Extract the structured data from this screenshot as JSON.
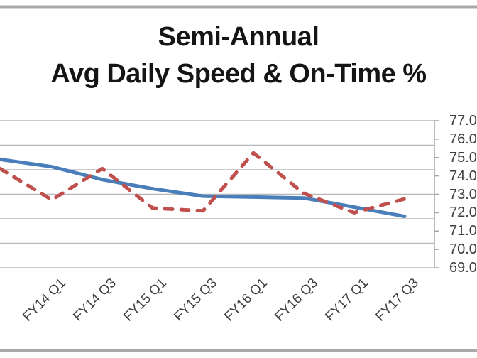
{
  "title": {
    "line1": "Semi-Annual",
    "line2": "Avg Daily Speed & On-Time %"
  },
  "chart_data": {
    "type": "line",
    "title": "Semi-Annual Avg Daily Speed & On-Time %",
    "categories": [
      "FY14 Q1",
      "FY14 Q3",
      "FY15 Q1",
      "FY15 Q3",
      "FY16 Q1",
      "FY16 Q3",
      "FY17 Q1",
      "FY17 Q3"
    ],
    "series": [
      {
        "name": "Avg Daily Speed",
        "line_style": "solid",
        "color": "#4a7ebb",
        "axis": "primary (cropped off left edge of image)",
        "value_scale": "right-axis equivalent (left axis not visible)",
        "values": [
          74.5,
          73.8,
          73.3,
          72.9,
          72.85,
          72.8,
          72.3,
          71.8
        ],
        "left_edge_value": 74.9
      },
      {
        "name": "On-Time %",
        "line_style": "dashed",
        "color": "#c0504d",
        "axis": "secondary (right)",
        "values": [
          72.7,
          74.4,
          72.25,
          72.1,
          75.25,
          73.05,
          72.0,
          72.75
        ],
        "left_edge_value": 74.4
      }
    ],
    "right_axis": {
      "min": 69.0,
      "max": 77.0,
      "tick_step": 1.0,
      "ticks": [
        "77.0",
        "76.0",
        "75.0",
        "74.0",
        "73.0",
        "72.0",
        "71.0",
        "70.0",
        "69.0"
      ]
    },
    "gridlines": {
      "horizontal_count": 7,
      "source": "primary axis (6 intervals), labels cropped out of frame"
    },
    "legend_position": "none",
    "layout_hints": {
      "image_cropped_left": true,
      "right_axis_labels_clipped_at_right_edge": true,
      "x_labels_rotated_degrees": 45
    }
  },
  "colors": {
    "speed_line": "#4a7ebb",
    "ontime_line": "#c0504d",
    "gridline": "#b8b8b8",
    "axis_line": "#a6a6a6",
    "axis_text": "#3f3f3f",
    "title_text": "#151515",
    "frame_line": "#a8a8a8",
    "background": "#ffffff"
  }
}
